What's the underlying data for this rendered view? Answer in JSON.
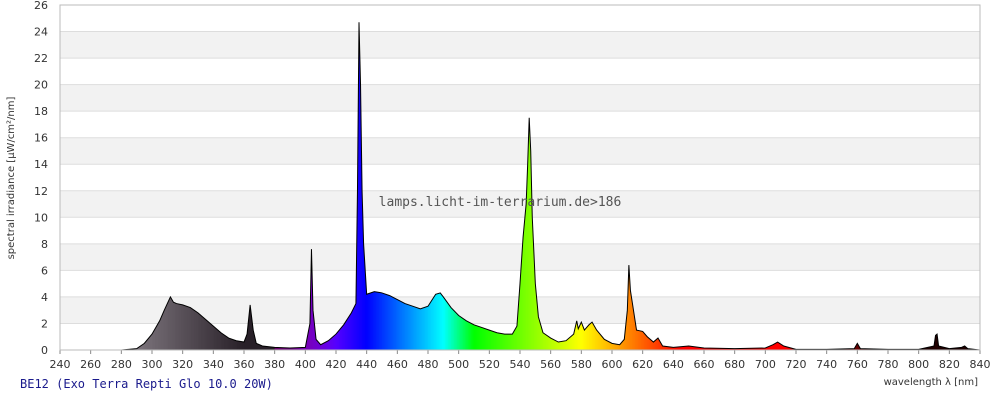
{
  "chart_data": {
    "type": "area",
    "title": "BE12 (Exo Terra Repti Glo 10.0 20W)",
    "watermark": "lamps.licht-im-terrarium.de>186",
    "x_label": "wavelength λ [nm]",
    "y_label": "spectral irradiance [µW/cm²/nm]",
    "xlim": [
      240,
      840
    ],
    "ylim": [
      0,
      26
    ],
    "xticks": [
      240,
      260,
      280,
      300,
      320,
      340,
      360,
      380,
      400,
      420,
      440,
      460,
      480,
      500,
      520,
      540,
      560,
      580,
      600,
      620,
      640,
      660,
      680,
      700,
      720,
      740,
      760,
      780,
      800,
      820,
      840
    ],
    "yticks": [
      0,
      2,
      4,
      6,
      8,
      10,
      12,
      14,
      16,
      18,
      20,
      22,
      24,
      26
    ],
    "grid": true,
    "color": "#000000",
    "x": [
      280,
      290,
      295,
      300,
      305,
      308,
      310,
      312,
      314,
      316,
      320,
      325,
      330,
      335,
      340,
      345,
      350,
      355,
      360,
      362,
      364,
      366,
      368,
      372,
      380,
      390,
      400,
      403,
      404,
      405,
      407,
      410,
      415,
      420,
      425,
      430,
      433,
      434,
      435,
      436,
      437,
      438,
      440,
      445,
      450,
      455,
      460,
      465,
      470,
      475,
      480,
      485,
      488,
      490,
      495,
      500,
      505,
      510,
      515,
      520,
      525,
      530,
      535,
      538,
      540,
      542,
      544,
      545,
      546,
      547,
      548,
      550,
      552,
      555,
      560,
      565,
      570,
      575,
      577,
      578,
      580,
      582,
      585,
      587,
      590,
      595,
      600,
      605,
      608,
      610,
      611,
      612,
      614,
      616,
      620,
      623,
      627,
      630,
      633,
      640,
      650,
      660,
      680,
      700,
      705,
      708,
      712,
      720,
      740,
      758,
      760,
      762,
      780,
      800,
      810,
      811,
      812,
      813,
      820,
      828,
      830,
      832,
      840
    ],
    "values": [
      0,
      0.1,
      0.5,
      1.2,
      2.2,
      3.0,
      3.5,
      4.0,
      3.6,
      3.5,
      3.4,
      3.2,
      2.8,
      2.3,
      1.8,
      1.3,
      0.9,
      0.7,
      0.6,
      1.2,
      3.4,
      1.5,
      0.5,
      0.3,
      0.2,
      0.15,
      0.2,
      2,
      7.6,
      3,
      0.8,
      0.4,
      0.7,
      1.2,
      1.9,
      2.8,
      3.5,
      12,
      24.7,
      20,
      12,
      8,
      4.2,
      4.4,
      4.3,
      4.1,
      3.8,
      3.5,
      3.3,
      3.1,
      3.3,
      4.2,
      4.3,
      4.0,
      3.2,
      2.6,
      2.2,
      1.9,
      1.7,
      1.5,
      1.3,
      1.2,
      1.2,
      1.8,
      5,
      8.5,
      11,
      14,
      17.5,
      15,
      10,
      5,
      2.5,
      1.3,
      0.9,
      0.6,
      0.7,
      1.2,
      2.2,
      1.6,
      2.1,
      1.5,
      1.9,
      2.1,
      1.5,
      0.8,
      0.5,
      0.4,
      0.8,
      3,
      6.4,
      4.5,
      3,
      1.5,
      1.4,
      1.0,
      0.6,
      0.9,
      0.3,
      0.2,
      0.3,
      0.15,
      0.1,
      0.15,
      0.4,
      0.6,
      0.3,
      0.05,
      0.05,
      0.1,
      0.5,
      0.1,
      0.05,
      0.05,
      0.3,
      1.1,
      1.2,
      0.3,
      0.1,
      0.2,
      0.3,
      0.1,
      0
    ]
  }
}
